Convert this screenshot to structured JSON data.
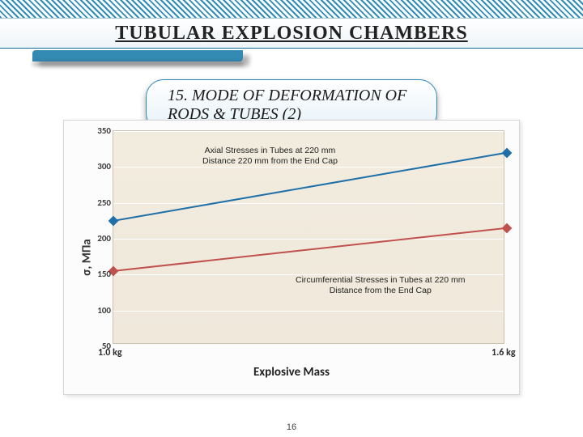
{
  "title": "TUBULAR EXPLOSION CHAMBERS",
  "subtitle": "15. MODE OF DEFORMATION OF RODS & TUBES (2)",
  "page_number": "16",
  "chart": {
    "type": "line",
    "background_color": "#f1ead d",
    "plot_bg": "#f1eadd",
    "grid_color": "#ffffff",
    "ylabel": "σ, МПа",
    "xlabel": "Explosive Mass",
    "ylabel_fontsize": 15,
    "xlabel_fontsize": 15,
    "ylim": [
      50,
      350
    ],
    "ytick_step": 50,
    "yticks": [
      "50",
      "100",
      "150",
      "200",
      "250",
      "300",
      "350"
    ],
    "xlim": [
      1.0,
      1.6
    ],
    "xticks": [
      {
        "value": 1.0,
        "label": "1.0 kg"
      },
      {
        "value": 1.6,
        "label": "1.6 kg"
      }
    ],
    "annotations": [
      {
        "key": "axial",
        "text_l1": "Axial Stresses in Tubes at 220 mm",
        "text_l2": "Distance 220 mm from the End Cap"
      },
      {
        "key": "circ",
        "text_l1": "Circumferential Stresses in Tubes at 220 mm",
        "text_l2": "Distance from the End Cap"
      }
    ],
    "series": [
      {
        "name": "axial",
        "color": "#1f6fa8",
        "marker_color": "#1f6fa8",
        "line_width": 2,
        "points": [
          {
            "x": 1.0,
            "y": 225
          },
          {
            "x": 1.6,
            "y": 320
          }
        ]
      },
      {
        "name": "circumferential",
        "color": "#c0504d",
        "marker_color": "#c0504d",
        "line_width": 2,
        "points": [
          {
            "x": 1.0,
            "y": 155
          },
          {
            "x": 1.6,
            "y": 215
          }
        ]
      }
    ]
  },
  "colors": {
    "brand": "#1f7fb0",
    "hatch": "#2d8cb8",
    "pill_border": "#2b87b4"
  }
}
